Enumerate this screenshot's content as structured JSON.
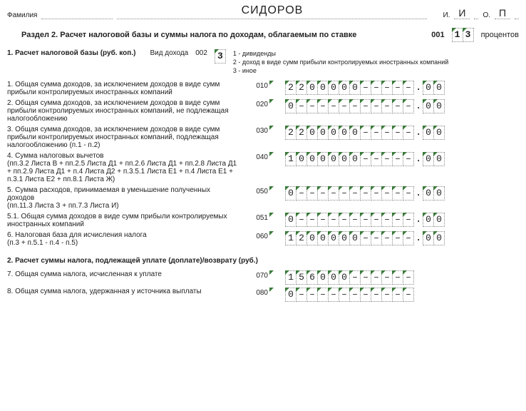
{
  "colors": {
    "tick": "#3a7a3a",
    "border": "#888888",
    "text": "#222222",
    "bg": "#ffffff"
  },
  "top": {
    "familia_label": "Фамилия",
    "surname": "СИДОРОВ",
    "i_label": "И.",
    "i_val": "И",
    "o_label": "О.",
    "o_val": "П"
  },
  "section_title": "Раздел 2. Расчет налоговой базы и суммы налога по доходам, облагаемым по ставке",
  "rate_code_label": "001",
  "rate_cells": [
    "1",
    "3"
  ],
  "rate_suffix": "процентов",
  "sub1": {
    "title": "1. Расчет налоговой базы (руб. коп.)",
    "kind_label": "Вид дохода",
    "kind_code": "002",
    "kind_cells": [
      "3"
    ],
    "legend": [
      "1 - дивиденды",
      "2 - доход в виде сумм прибыли контролируемых иностранных компаний",
      "3 - иное"
    ]
  },
  "rows": [
    {
      "desc": "1. Общая сумма доходов, за исключением доходов в виде сумм прибыли контролируемых иностранных компаний",
      "code": "010",
      "int": [
        "2",
        "2",
        "0",
        "0",
        "0",
        "0",
        "0",
        "–",
        "–",
        "–",
        "–",
        "–"
      ],
      "dec": [
        "0",
        "0"
      ]
    },
    {
      "desc": "2. Общая сумма доходов, за исключением доходов в виде сумм прибыли контролируемых иностранных компаний, не подлежащая налогообложению",
      "code": "020",
      "int": [
        "0",
        "–",
        "–",
        "–",
        "–",
        "–",
        "–",
        "–",
        "–",
        "–",
        "–",
        "–"
      ],
      "dec": [
        "0",
        "0"
      ]
    },
    {
      "desc": "3. Общая сумма доходов, за исключением доходов в виде сумм прибыли контролируемых иностранных компаний, подлежащая налогообложению (п.1 - п.2)",
      "code": "030",
      "int": [
        "2",
        "2",
        "0",
        "0",
        "0",
        "0",
        "0",
        "–",
        "–",
        "–",
        "–",
        "–"
      ],
      "dec": [
        "0",
        "0"
      ]
    },
    {
      "desc": "4. Сумма налоговых вычетов\n(пп.3.2 Листа В + пп.2.5 Листа Д1 + пп.2.6 Листа Д1 + пп.2.8 Листа Д1 + пп.2.9 Листа Д1 + п.4 Листа Д2 + п.3.5.1 Листа Е1 + п.4 Листа Е1 + п.3.1 Листа Е2 + пп.8.1 Листа Ж)",
      "code": "040",
      "int": [
        "1",
        "0",
        "0",
        "0",
        "0",
        "0",
        "0",
        "–",
        "–",
        "–",
        "–",
        "–"
      ],
      "dec": [
        "0",
        "0"
      ]
    },
    {
      "desc": "5. Сумма расходов, принимаемая в уменьшение полученных доходов\n(пп.11.3 Листа З + пп.7.3 Листа И)",
      "code": "050",
      "int": [
        "0",
        "–",
        "–",
        "–",
        "–",
        "–",
        "–",
        "–",
        "–",
        "–",
        "–",
        "–"
      ],
      "dec": [
        "0",
        "0"
      ]
    },
    {
      "desc": "5.1. Общая сумма доходов в виде сумм прибыли контролируемых иностранных компаний",
      "code": "051",
      "int": [
        "0",
        "–",
        "–",
        "–",
        "–",
        "–",
        "–",
        "–",
        "–",
        "–",
        "–",
        "–"
      ],
      "dec": [
        "0",
        "0"
      ]
    },
    {
      "desc": "6. Налоговая база для исчисления налога\n(п.3 + п.5.1 - п.4 - п.5)",
      "code": "060",
      "int": [
        "1",
        "2",
        "0",
        "0",
        "0",
        "0",
        "0",
        "–",
        "–",
        "–",
        "–",
        "–"
      ],
      "dec": [
        "0",
        "0"
      ]
    }
  ],
  "section2_title": "2. Расчет суммы налога, подлежащей уплате (доплате)/возврату (руб.)",
  "rows2": [
    {
      "desc": "7. Общая сумма налога, исчисленная к уплате",
      "code": "070",
      "int": [
        "1",
        "5",
        "6",
        "0",
        "0",
        "0",
        "–",
        "–",
        "–",
        "–",
        "–",
        "–"
      ]
    },
    {
      "desc": "8. Общая сумма налога, удержанная у источника выплаты",
      "code": "080",
      "int": [
        "0",
        "–",
        "–",
        "–",
        "–",
        "–",
        "–",
        "–",
        "–",
        "–",
        "–",
        "–"
      ]
    }
  ]
}
